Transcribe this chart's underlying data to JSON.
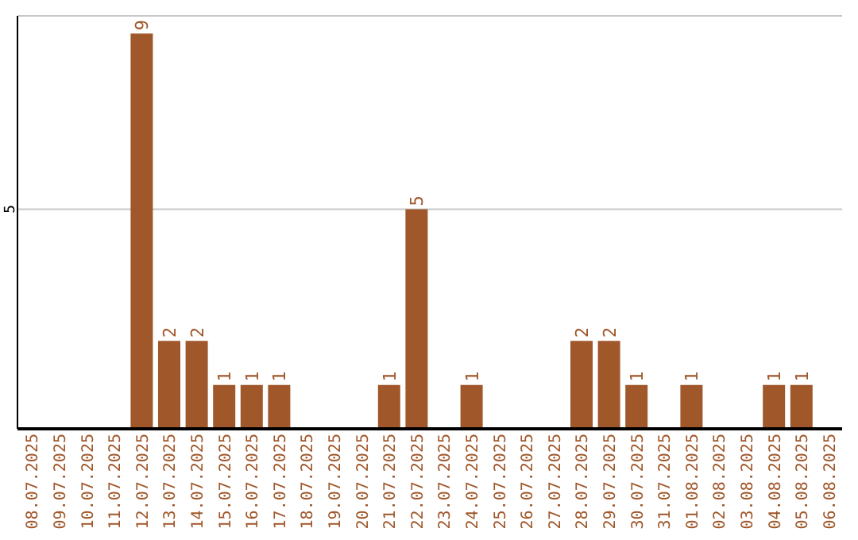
{
  "chart_data": {
    "type": "bar",
    "categories": [
      "08.07.2025",
      "09.07.2025",
      "10.07.2025",
      "11.07.2025",
      "12.07.2025",
      "13.07.2025",
      "14.07.2025",
      "15.07.2025",
      "16.07.2025",
      "17.07.2025",
      "18.07.2025",
      "19.07.2025",
      "20.07.2025",
      "21.07.2025",
      "22.07.2025",
      "23.07.2025",
      "24.07.2025",
      "25.07.2025",
      "26.07.2025",
      "27.07.2025",
      "28.07.2025",
      "29.07.2025",
      "30.07.2025",
      "31.07.2025",
      "01.08.2025",
      "02.08.2025",
      "03.08.2025",
      "04.08.2025",
      "05.08.2025",
      "06.08.2025"
    ],
    "values": [
      0,
      0,
      0,
      0,
      9,
      2,
      2,
      1,
      1,
      1,
      0,
      0,
      0,
      1,
      5,
      0,
      1,
      0,
      0,
      0,
      2,
      2,
      1,
      0,
      1,
      0,
      0,
      1,
      1,
      0
    ],
    "value_labels": [
      null,
      null,
      null,
      null,
      "9",
      "2",
      "2",
      "1",
      "1",
      "1",
      null,
      null,
      null,
      "1",
      "5",
      null,
      "1",
      null,
      null,
      null,
      "2",
      "2",
      "1",
      null,
      "1",
      null,
      null,
      "1",
      "1",
      null
    ],
    "color": "#a0572a",
    "ylim": [
      0,
      9.4
    ],
    "yticks": [
      5
    ],
    "grid": "y"
  }
}
